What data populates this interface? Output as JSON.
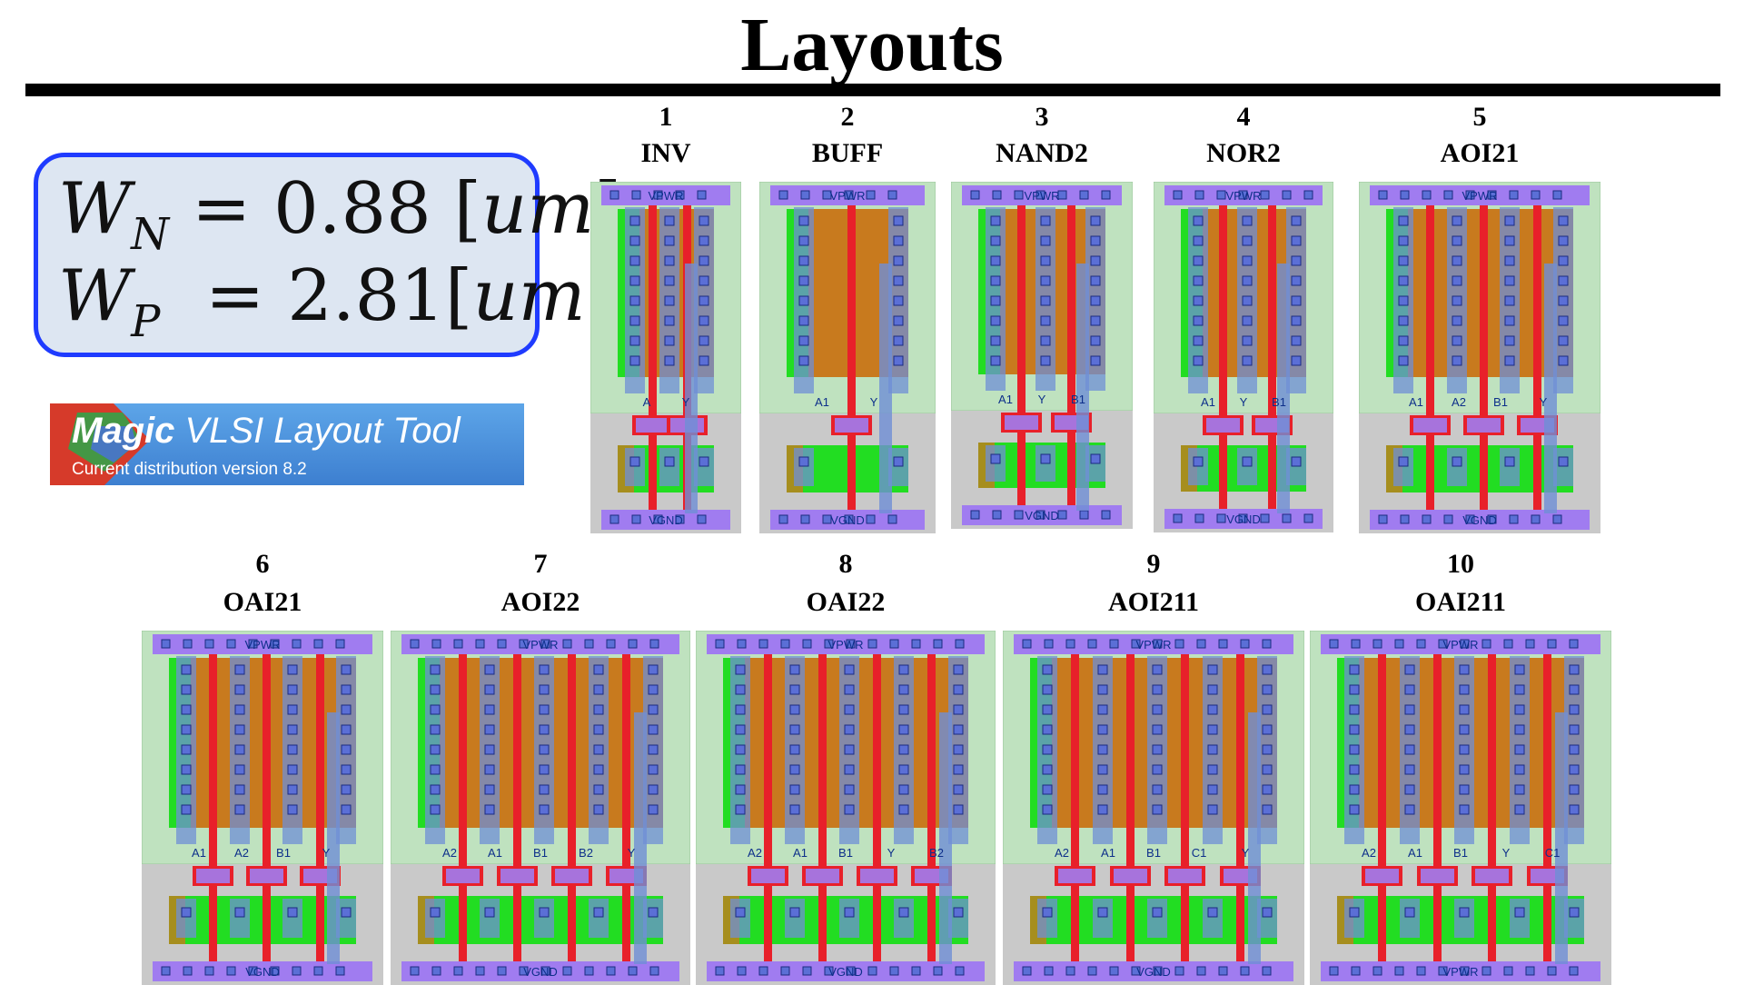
{
  "title": "Layouts",
  "equations": {
    "wn": {
      "symbol": "W",
      "subscript": "N",
      "value": "0.88",
      "unit": "um"
    },
    "wp": {
      "symbol": "W",
      "subscript": "P",
      "value": "2.81",
      "unit": "um"
    }
  },
  "magic_banner": {
    "name_bold": "Magic",
    "name_rest": " VLSI Layout Tool",
    "version": "Current distribution version 8.2"
  },
  "colors": {
    "pwell": "#c9c9c9",
    "nwell": "#bfe2bf",
    "pdiff": "#c87a1e",
    "ndiff": "#22dd22",
    "poly": "#e8202a",
    "locali": "#6f8fd6",
    "met1": "#a07cf0",
    "contact": "#5b6fd6",
    "tap": "#20b8b8"
  },
  "cells": [
    {
      "num": "1",
      "name": "INV",
      "labels": {
        "top": "VPWR",
        "bottom": "VGND",
        "pins": [
          "A",
          "Y"
        ]
      }
    },
    {
      "num": "2",
      "name": "BUFF",
      "labels": {
        "top": "VPWR",
        "bottom": "VGND",
        "pins": [
          "A1",
          "Y"
        ]
      }
    },
    {
      "num": "3",
      "name": "NAND2",
      "labels": {
        "top": "VPWR",
        "bottom": "VGND",
        "pins": [
          "A1",
          "Y",
          "B1"
        ]
      }
    },
    {
      "num": "4",
      "name": "NOR2",
      "labels": {
        "top": "VPWR",
        "bottom": "VGND",
        "pins": [
          "A1",
          "Y",
          "B1"
        ]
      }
    },
    {
      "num": "5",
      "name": "AOI21",
      "labels": {
        "top": "VPWR",
        "bottom": "VGND",
        "pins": [
          "A1",
          "A2",
          "B1",
          "Y"
        ]
      }
    },
    {
      "num": "6",
      "name": "OAI21",
      "labels": {
        "top": "VPWR",
        "bottom": "VGND",
        "pins": [
          "A1",
          "A2",
          "B1",
          "Y"
        ]
      }
    },
    {
      "num": "7",
      "name": "AOI22",
      "labels": {
        "top": "VPWR",
        "bottom": "VGND",
        "pins": [
          "A2",
          "A1",
          "B1",
          "B2",
          "Y"
        ]
      }
    },
    {
      "num": "8",
      "name": "OAI22",
      "labels": {
        "top": "VPWR",
        "bottom": "VGND",
        "pins": [
          "A2",
          "A1",
          "B1",
          "Y",
          "B2"
        ]
      }
    },
    {
      "num": "9",
      "name": "AOI211",
      "labels": {
        "top": "VPWR",
        "bottom": "VGND",
        "pins": [
          "A2",
          "A1",
          "B1",
          "C1",
          "Y"
        ]
      }
    },
    {
      "num": "10",
      "name": "OAI211",
      "labels": {
        "top": "VPWR",
        "bottom": "VPWR",
        "pins": [
          "A2",
          "A1",
          "B1",
          "Y",
          "C1"
        ]
      }
    }
  ]
}
